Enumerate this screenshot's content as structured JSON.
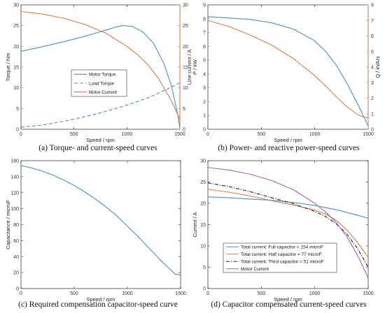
{
  "chart_data": [
    {
      "type": "line",
      "caption": "(a) Torque- and current-speed curves",
      "xlabel": "Speed / rpm",
      "ylabel": "Torque / Nm",
      "ylabel_right": "Line current / A",
      "xlim": [
        0,
        1500
      ],
      "ylim": [
        0,
        30
      ],
      "ylim_right": [
        0,
        30
      ],
      "x_ticks": [
        0,
        500,
        1000,
        1500
      ],
      "y_ticks": [
        0,
        5,
        10,
        15,
        20,
        25,
        30
      ],
      "y_ticks_right": [
        0,
        5,
        10,
        15,
        20,
        25,
        30
      ],
      "grid": false,
      "legend": "center",
      "series": [
        {
          "name": "Motor Torque",
          "axis": "left",
          "style": "solid",
          "color": "#4a90c8",
          "x": [
            0,
            200,
            400,
            600,
            800,
            900,
            960,
            1050,
            1150,
            1250,
            1350,
            1420,
            1480,
            1500
          ],
          "y": [
            18.8,
            19.9,
            21.1,
            22.4,
            23.9,
            24.7,
            25.0,
            24.8,
            23.5,
            20.8,
            15.8,
            10.5,
            3.5,
            0.3
          ]
        },
        {
          "name": "Load Torque",
          "axis": "left",
          "style": "dashed",
          "color": "#4a90c8",
          "x": [
            0,
            200,
            400,
            600,
            800,
            1000,
            1200,
            1400,
            1500
          ],
          "y": [
            0.5,
            1.0,
            1.9,
            3.0,
            4.3,
            5.8,
            7.6,
            9.9,
            11.2
          ]
        },
        {
          "name": "Motor Current",
          "axis": "right",
          "style": "solid",
          "color": "#e07a4a",
          "x": [
            0,
            200,
            400,
            600,
            800,
            1000,
            1100,
            1200,
            1300,
            1400,
            1450,
            1500
          ],
          "y": [
            28.4,
            27.8,
            26.8,
            25.3,
            23.2,
            20.0,
            18.0,
            15.5,
            12.2,
            7.8,
            5.2,
            2.4
          ]
        }
      ]
    },
    {
      "type": "line",
      "caption": "(b) Power- and reactive power-speed curves",
      "xlabel": "Speed / rpm",
      "ylabel": "P / kW",
      "ylabel_right": "Q / kVArs",
      "xlim": [
        0,
        1500
      ],
      "ylim": [
        0,
        9
      ],
      "ylim_right": [
        0,
        8
      ],
      "x_ticks": [
        0,
        500,
        1000,
        1500
      ],
      "y_ticks": [
        0,
        1,
        2,
        3,
        4,
        5,
        6,
        7,
        8,
        9
      ],
      "y_ticks_right": [
        0,
        1,
        2,
        3,
        4,
        5,
        6,
        7,
        8
      ],
      "grid": false,
      "series": [
        {
          "name": "P",
          "axis": "left",
          "style": "solid",
          "color": "#4a90c8",
          "x": [
            0,
            200,
            400,
            600,
            800,
            1000,
            1100,
            1200,
            1300,
            1400,
            1450,
            1500
          ],
          "y": [
            8.15,
            8.05,
            7.95,
            7.7,
            7.25,
            6.4,
            5.65,
            4.65,
            3.35,
            1.85,
            1.05,
            0.25
          ]
        },
        {
          "name": "Q",
          "axis": "right",
          "style": "solid",
          "color": "#e07a4a",
          "x": [
            0,
            200,
            400,
            600,
            800,
            1000,
            1100,
            1200,
            1300,
            1400,
            1450,
            1500
          ],
          "y": [
            7.0,
            6.6,
            6.05,
            5.4,
            4.55,
            3.45,
            2.8,
            2.1,
            1.45,
            0.95,
            0.8,
            0.75
          ]
        }
      ]
    },
    {
      "type": "line",
      "caption": "(c) Required compensation capacitor-speed curve",
      "xlabel": "Speed / rpm",
      "ylabel": "Capacitance / microF",
      "xlim": [
        0,
        1500
      ],
      "ylim": [
        0,
        160
      ],
      "x_ticks": [
        0,
        500,
        1000,
        1500
      ],
      "y_ticks": [
        0,
        20,
        40,
        60,
        80,
        100,
        120,
        140,
        160
      ],
      "grid": false,
      "series": [
        {
          "name": "Capacitance",
          "axis": "left",
          "style": "solid",
          "color": "#4a90c8",
          "x": [
            0,
            100,
            200,
            300,
            400,
            500,
            600,
            700,
            800,
            900,
            1000,
            1100,
            1200,
            1300,
            1400,
            1450,
            1500
          ],
          "y": [
            154,
            151,
            147,
            142,
            136,
            129,
            121,
            112,
            102,
            91,
            78,
            65,
            51,
            37,
            24,
            18,
            17
          ]
        }
      ]
    },
    {
      "type": "line",
      "caption": "(d) Capacitor compensated current-speed curves",
      "xlabel": "Speed / rpm",
      "ylabel": "Current / A",
      "xlim": [
        0,
        1500
      ],
      "ylim": [
        0,
        30
      ],
      "x_ticks": [
        0,
        500,
        1000,
        1500
      ],
      "y_ticks": [
        0,
        5,
        10,
        15,
        20,
        25,
        30
      ],
      "grid": false,
      "legend": "lower-left",
      "series": [
        {
          "name": "Total current: Full capacitor = 154 microF",
          "axis": "left",
          "style": "solid",
          "color": "#4a90c8",
          "x": [
            0,
            200,
            400,
            600,
            800,
            1000,
            1200,
            1400,
            1500
          ],
          "y": [
            21.5,
            21.3,
            21.0,
            20.7,
            20.2,
            19.5,
            18.5,
            17.2,
            16.5
          ]
        },
        {
          "name": "Total current: Half capacitor = 77 microF",
          "axis": "left",
          "style": "solid",
          "color": "#e07a4a",
          "x": [
            0,
            200,
            400,
            600,
            800,
            1000,
            1100,
            1200,
            1300,
            1400,
            1500
          ],
          "y": [
            23.3,
            22.6,
            21.7,
            20.6,
            19.6,
            18.4,
            17.5,
            16.0,
            13.8,
            10.8,
            7.3
          ]
        },
        {
          "name": "Total current: Third capacitor = 51 microF",
          "axis": "left",
          "style": "dashdot",
          "color": "#222222",
          "x": [
            0,
            200,
            400,
            600,
            800,
            1000,
            1100,
            1200,
            1300,
            1400,
            1500
          ],
          "y": [
            24.8,
            23.9,
            22.7,
            21.3,
            19.9,
            18.1,
            16.9,
            15.2,
            12.8,
            9.4,
            5.0
          ]
        },
        {
          "name": "Motor Current",
          "axis": "left",
          "style": "solid",
          "color": "#a066c0",
          "x": [
            0,
            200,
            400,
            600,
            800,
            1000,
            1100,
            1200,
            1300,
            1400,
            1450,
            1500
          ],
          "y": [
            28.4,
            27.8,
            26.8,
            25.3,
            23.2,
            20.0,
            18.0,
            15.5,
            12.2,
            7.8,
            5.2,
            2.4
          ]
        }
      ]
    }
  ]
}
